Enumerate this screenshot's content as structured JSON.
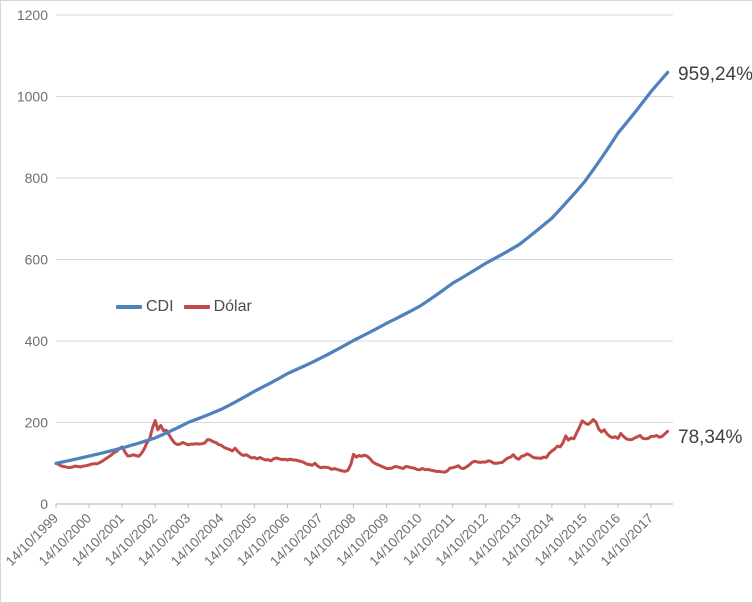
{
  "chart_data": {
    "type": "line",
    "title": "",
    "xlabel": "",
    "ylabel": "",
    "grid": true,
    "y_axis": {
      "min": 0,
      "max": 1200,
      "tick_interval": 200,
      "ticks": [
        0,
        200,
        400,
        600,
        800,
        1000,
        1200
      ]
    },
    "x_axis": {
      "tick_labels": [
        "14/10/1999",
        "14/10/2000",
        "14/10/2001",
        "14/10/2002",
        "14/10/2003",
        "14/10/2004",
        "14/10/2005",
        "14/10/2006",
        "14/10/2007",
        "14/10/2008",
        "14/10/2009",
        "14/10/2010",
        "14/10/2011",
        "14/10/2012",
        "14/10/2013",
        "14/10/2014",
        "14/10/2015",
        "14/10/2016",
        "14/10/2017"
      ],
      "start_year_decimal": 1999.7917,
      "years_per_tick": 1
    },
    "legend": {
      "position": "middle-left"
    },
    "colors": {
      "cdi": "#4F81BD",
      "dolar": "#BE4B48",
      "gridline": "#D9D9D9",
      "axis_line": "#BFBFBF",
      "axis_text": "#6E6E6E"
    },
    "series": [
      {
        "name": "CDI",
        "color": "#4F81BD",
        "end_label": "959,24%",
        "start_year_decimal": 1999.7917,
        "step_months": 3,
        "values": [
          100,
          104.1,
          108.4,
          112.8,
          117.5,
          122.2,
          127.1,
          132.2,
          137.5,
          143.3,
          149.3,
          155.6,
          162.2,
          171.0,
          180.3,
          190.0,
          200.3,
          207.9,
          215.7,
          223.9,
          232.4,
          242.7,
          253.5,
          264.7,
          276.5,
          286.8,
          297.4,
          308.4,
          319.9,
          329.0,
          338.3,
          347.8,
          357.7,
          368.1,
          378.9,
          390.0,
          401.3,
          411.5,
          421.9,
          432.5,
          443.4,
          453.5,
          463.8,
          474.3,
          485.1,
          498.7,
          512.7,
          527.1,
          541.9,
          553.7,
          565.8,
          578.1,
          590.6,
          601.6,
          612.8,
          624.3,
          636.1,
          651.9,
          668.1,
          684.6,
          701.6,
          723.2,
          745.5,
          768.4,
          792.1,
          820.1,
          849.1,
          879.2,
          910.3,
          934.8,
          959.9,
          985.7,
          1012.2,
          1035.5,
          1059.24
        ]
      },
      {
        "name": "Dólar",
        "color": "#BE4B48",
        "end_label": "78,34%",
        "start_year_decimal": 1999.7917,
        "step_months": 1,
        "values": [
          100,
          97,
          93,
          92,
          90,
          89,
          91,
          93,
          92,
          91,
          93,
          94,
          96,
          98,
          99,
          99,
          102,
          106,
          111,
          115,
          120,
          126,
          129,
          136,
          140,
          128,
          118,
          118,
          121,
          119,
          117,
          124,
          135,
          150,
          160,
          186,
          205,
          182,
          193,
          180,
          181,
          170,
          159,
          150,
          146,
          147,
          151,
          148,
          145,
          147,
          147,
          148,
          147,
          148,
          150,
          158,
          157,
          153,
          151,
          146,
          144,
          139,
          136,
          134,
          130,
          137,
          129,
          123,
          119,
          121,
          117,
          113,
          114,
          111,
          114,
          111,
          108,
          109,
          106,
          111,
          113,
          111,
          109,
          110,
          108,
          110,
          108,
          108,
          106,
          104,
          102,
          98,
          97,
          95,
          100,
          93,
          89,
          90,
          90,
          89,
          85,
          87,
          85,
          83,
          81,
          80,
          83,
          97,
          122,
          115,
          119,
          117,
          120,
          117,
          111,
          103,
          99,
          96,
          93,
          90,
          87,
          87,
          88,
          92,
          91,
          89,
          87,
          92,
          91,
          89,
          88,
          85,
          84,
          87,
          84,
          85,
          83,
          82,
          80,
          80,
          79,
          78,
          81,
          88,
          89,
          91,
          94,
          88,
          87,
          91,
          96,
          102,
          105,
          103,
          102,
          103,
          103,
          106,
          104,
          100,
          100,
          101,
          102,
          108,
          113,
          115,
          121,
          113,
          110,
          117,
          119,
          123,
          120,
          115,
          113,
          113,
          112,
          115,
          114,
          124,
          130,
          135,
          142,
          140,
          150,
          167,
          157,
          162,
          160,
          175,
          188,
          204,
          199,
          195,
          200,
          207,
          201,
          184,
          177,
          182,
          172,
          166,
          163,
          165,
          161,
          173,
          166,
          160,
          158,
          158,
          162,
          165,
          168,
          161,
          160,
          161,
          166,
          166,
          168,
          164,
          166,
          172,
          178.34
        ]
      }
    ]
  }
}
